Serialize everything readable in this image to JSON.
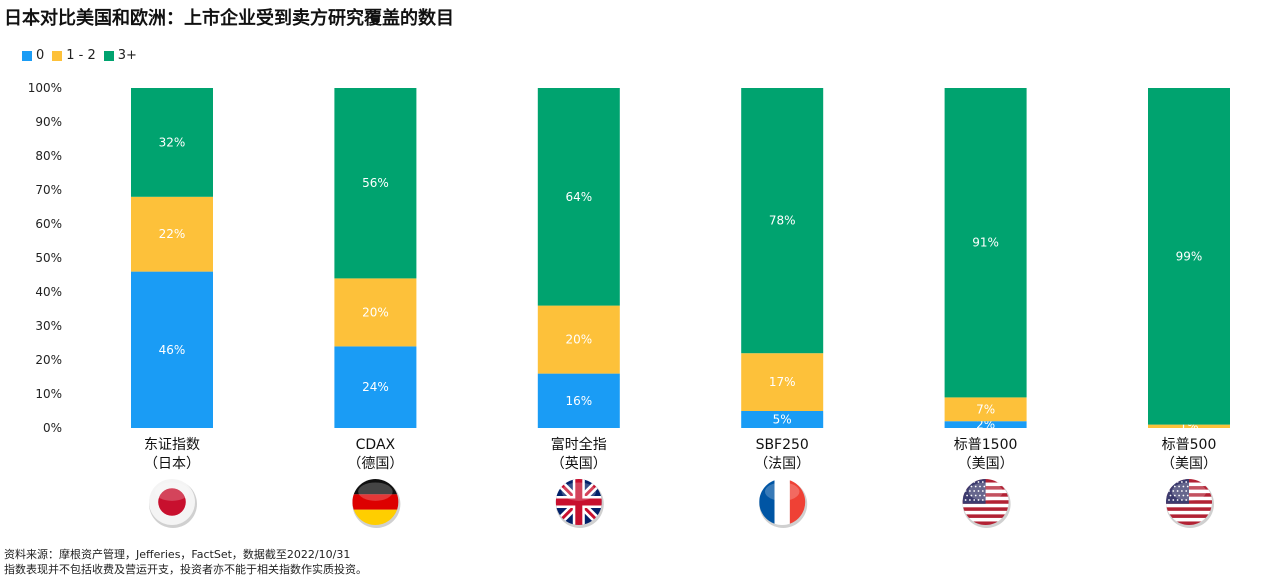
{
  "title": "日本对比美国和欧洲：上市企业受到卖方研究覆盖的数目",
  "colors": {
    "s0": "#1A9CF5",
    "s1": "#FDC13A",
    "s2": "#00A36F"
  },
  "flags": [
    "japan-flag-icon",
    "germany-flag-icon",
    "uk-flag-icon",
    "france-flag-icon",
    "usa-flag-icon",
    "usa-flag-icon"
  ],
  "footnotes": [
    "资料来源：摩根资产管理，Jefferies，FactSet，数据截至2022/10/31",
    "指数表现并不包括收费及营运开支，投资者亦不能于相关指数作实质投资。"
  ],
  "chart_data": {
    "type": "bar",
    "stacked": true,
    "categories": [
      {
        "name": "东证指数",
        "region": "（日本）"
      },
      {
        "name": "CDAX",
        "region": "（德国）"
      },
      {
        "name": "富时全指",
        "region": "（英国）"
      },
      {
        "name": "SBF250",
        "region": "（法国）"
      },
      {
        "name": "标普1500",
        "region": "（美国）"
      },
      {
        "name": "标普500",
        "region": "（美国）"
      }
    ],
    "series": [
      {
        "name": "0",
        "values": [
          46,
          24,
          16,
          5,
          2,
          0
        ],
        "labels": [
          "46%",
          "24%",
          "16%",
          "5%",
          "2%",
          ""
        ]
      },
      {
        "name": "1 - 2",
        "values": [
          22,
          20,
          20,
          17,
          7,
          1
        ],
        "labels": [
          "22%",
          "20%",
          "20%",
          "17%",
          "7%",
          "1%"
        ]
      },
      {
        "name": "3+",
        "values": [
          32,
          56,
          64,
          78,
          91,
          99
        ],
        "labels": [
          "32%",
          "56%",
          "64%",
          "78%",
          "91%",
          "99%"
        ]
      }
    ],
    "ylim": [
      0,
      100
    ],
    "yticks": [
      "0%",
      "10%",
      "20%",
      "30%",
      "40%",
      "50%",
      "60%",
      "70%",
      "80%",
      "90%",
      "100%"
    ],
    "legend_position": "top-left",
    "grid": false
  }
}
